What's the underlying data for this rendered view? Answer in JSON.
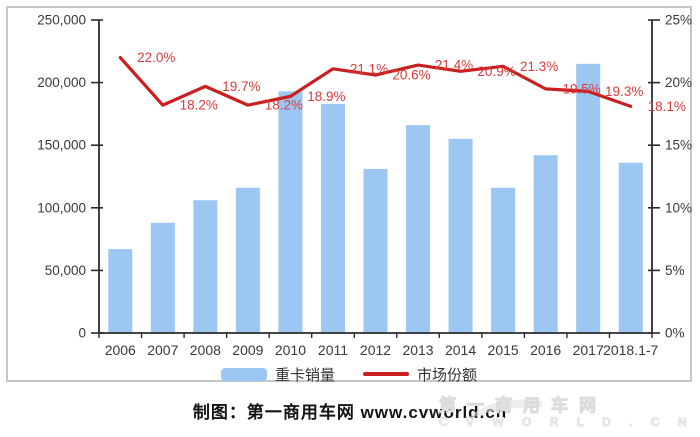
{
  "chart_data": {
    "type": "bar",
    "subtype": "bar-line-combo",
    "categories": [
      "2006",
      "2007",
      "2008",
      "2009",
      "2010",
      "2011",
      "2012",
      "2013",
      "2014",
      "2015",
      "2016",
      "2017",
      "2018.1-7"
    ],
    "series": [
      {
        "name": "重卡销量",
        "type": "bar",
        "axis": "left",
        "color": "#9cc7f2",
        "values": [
          67000,
          88000,
          106000,
          116000,
          193000,
          183000,
          131000,
          166000,
          155000,
          116000,
          142000,
          215000,
          136000
        ]
      },
      {
        "name": "市场份额",
        "type": "line",
        "axis": "right",
        "color": "#c9201f",
        "label_color": "#d83c3b",
        "values": [
          22.0,
          18.2,
          19.7,
          18.2,
          18.9,
          21.1,
          20.6,
          21.4,
          20.9,
          21.3,
          19.5,
          19.3,
          18.1
        ],
        "point_labels": [
          "22.0%",
          "18.2%",
          "19.7%",
          "18.2%",
          "18.9%",
          "21.1%",
          "20.6%",
          "21.4%",
          "20.9%",
          "21.3%",
          "19.5%",
          "19.3%",
          "18.1%"
        ]
      }
    ],
    "left_axis": {
      "min": 0,
      "max": 250000,
      "step": 50000,
      "tick_labels_top_down": [
        "250,000",
        "200,000",
        "150,000",
        "100,000",
        "50,000",
        "0"
      ]
    },
    "right_axis": {
      "min": 0,
      "max": 25,
      "step": 5,
      "tick_labels_top_down": [
        "25%",
        "20%",
        "15%",
        "10%",
        "5%",
        "0%"
      ]
    },
    "title": "",
    "xlabel": "",
    "ylabel": "",
    "grid": false,
    "legend_position": "bottom"
  },
  "legend": {
    "bar_label": "重卡销量",
    "line_label": "市场份额"
  },
  "caption": "制图：第一商用车网 www.cvworld.cn",
  "watermark": {
    "line1": "第一商用车网",
    "line2": "C V W O R L D . C N"
  },
  "colors": {
    "bar": "#9cc7f2",
    "line": "#c9201f",
    "data_label": "#d83c3b",
    "axis_text": "#3a3a3a",
    "axis_line": "#2b2b2b",
    "frame_border": "#c6c6c6"
  }
}
